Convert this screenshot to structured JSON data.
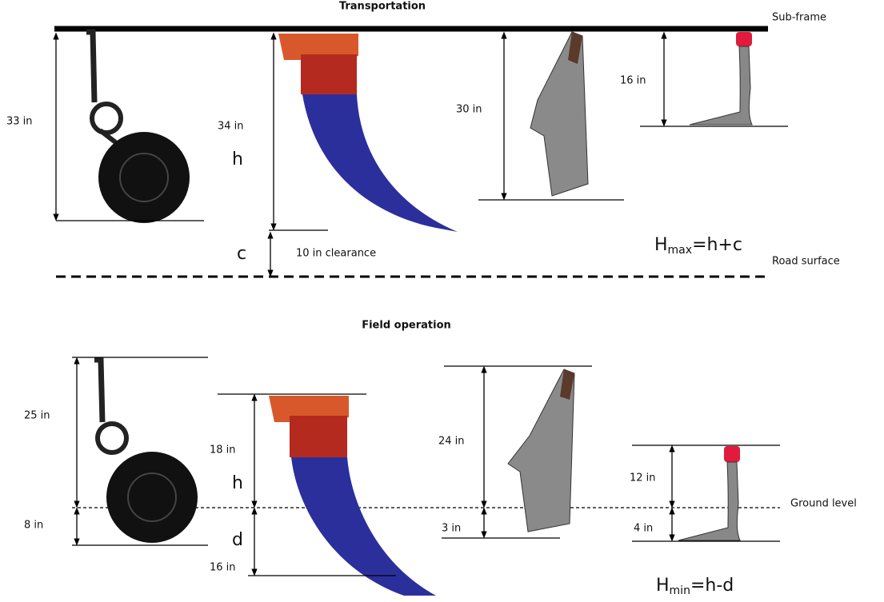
{
  "transportation": {
    "title": "Transportation",
    "frame_label": "Sub-frame",
    "road_label": "Road surface",
    "dims": [
      "33 in",
      "34 in",
      "30 in",
      "16 in"
    ],
    "h": "h",
    "c": "c",
    "clearance": "10 in clearance",
    "formula": {
      "symbol": "H",
      "subscript": "max",
      "rest": "=h+c"
    }
  },
  "field_operation": {
    "title": "Field operation",
    "ground_label": "Ground level",
    "above": [
      "25 in",
      "18 in",
      "24 in",
      "12 in"
    ],
    "below": [
      "8 in",
      "16 in",
      "3 in",
      "4 in"
    ],
    "h": "h",
    "d": "d",
    "formula": {
      "symbol": "H",
      "subscript": "min",
      "rest": "=h-d"
    }
  }
}
